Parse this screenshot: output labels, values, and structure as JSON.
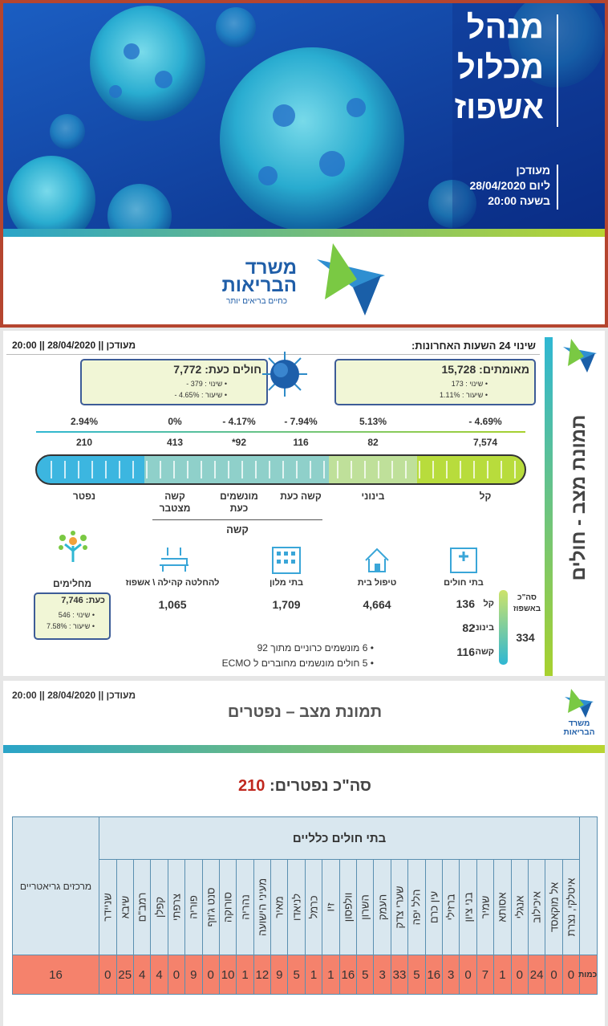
{
  "banner": {
    "title": [
      "מנהל",
      "מכלול",
      "אשפוז"
    ],
    "updated": [
      "מעודכן",
      "ליום 28/04/2020",
      "בשעה 20:00"
    ],
    "logo": {
      "name": [
        "משרד",
        "הבריאות"
      ],
      "tagline": "כחיים בריאים יותר"
    }
  },
  "status": {
    "side_title": "תמונת מצב - חולים",
    "header_right": "שינוי 24 השעות האחרונות:",
    "header_left": "מעודכן || 28/04/2020 || 20:00",
    "confirmed": {
      "label": "מאומתים: 15,728",
      "change": "• שינוי : 173",
      "rate": "• שיעור : 1.11%"
    },
    "active": {
      "label": "חולים כעת: 7,772",
      "change": "• שינוי : 379 -",
      "rate": "• שיעור : 4.65% -"
    },
    "columns": [
      {
        "pct": "- 4.69%",
        "count": "7,574",
        "label": "קל"
      },
      {
        "pct": "5.13%",
        "count": "82",
        "label": "בינוני"
      },
      {
        "pct": "- 7.94%",
        "count": "116",
        "label": "קשה כעת"
      },
      {
        "pct": "- 4.17%",
        "count": "92*",
        "label": "מונשמים כעת"
      },
      {
        "pct": "0%",
        "count": "413",
        "label": "קשה מצטבר"
      },
      {
        "pct": "2.94%",
        "count": "210",
        "label": "נפטר"
      }
    ],
    "severe_group": "קשה",
    "places": [
      {
        "label": "בתי חולים"
      },
      {
        "label": "טיפול בית",
        "value": "4,664"
      },
      {
        "label": "בתי מלון",
        "value": "1,709"
      },
      {
        "label": "להחלטה קהילה \\ אשפוז",
        "value": "1,065"
      }
    ],
    "recovered": {
      "label": "מחלימים",
      "now": "כעת: 7,746",
      "change": "• שינוי : 546",
      "rate": "• שיעור : 7.58%"
    },
    "hospital": {
      "rows": [
        {
          "label": "קל",
          "value": "136"
        },
        {
          "label": "בינוני",
          "value": "82"
        },
        {
          "label": "קשה",
          "value": "116"
        }
      ],
      "total_label": "סה\"כ באשפוז",
      "total": "334"
    },
    "notes": [
      "6 מונשמים כרוניים מתוך 92",
      "5 חולים מונשמים מחוברים ל ECMO"
    ]
  },
  "deaths": {
    "header_left": "מעודכן || 28/04/2020 || 20:00",
    "title": "תמונת מצב – נפטרים",
    "logo": [
      "משרד",
      "הבריאות"
    ],
    "total_label": "סה\"כ נפטרים:",
    "total": 210,
    "table": {
      "group_header": "בתי חולים כלליים",
      "geriatric_header": "מרכזים גריאטריים",
      "row_label": "כמות",
      "hospitals": [
        "איטלקי, נצרת",
        "אל מוקאסד",
        "איכילוב",
        "אנגלי",
        "אסותא",
        "שמיר",
        "בני ציון",
        "ברזילי",
        "עין כרם",
        "הלל יפה",
        "שערי צדק",
        "העמק",
        "השרון",
        "וולפסון",
        "זיו",
        "כרמל",
        "לניאדו",
        "מאיר",
        "מעיני הישועה",
        "נהריה",
        "סורוקה",
        "סנט ג'וזף",
        "פוריה",
        "צרפתי",
        "קפלן",
        "רמב\"ם",
        "שיבא",
        "שניידר"
      ],
      "counts": [
        0,
        0,
        24,
        0,
        1,
        7,
        0,
        3,
        16,
        5,
        33,
        3,
        5,
        16,
        1,
        1,
        5,
        9,
        12,
        1,
        10,
        0,
        9,
        0,
        4,
        4,
        25,
        0
      ],
      "geriatric": 16
    }
  }
}
